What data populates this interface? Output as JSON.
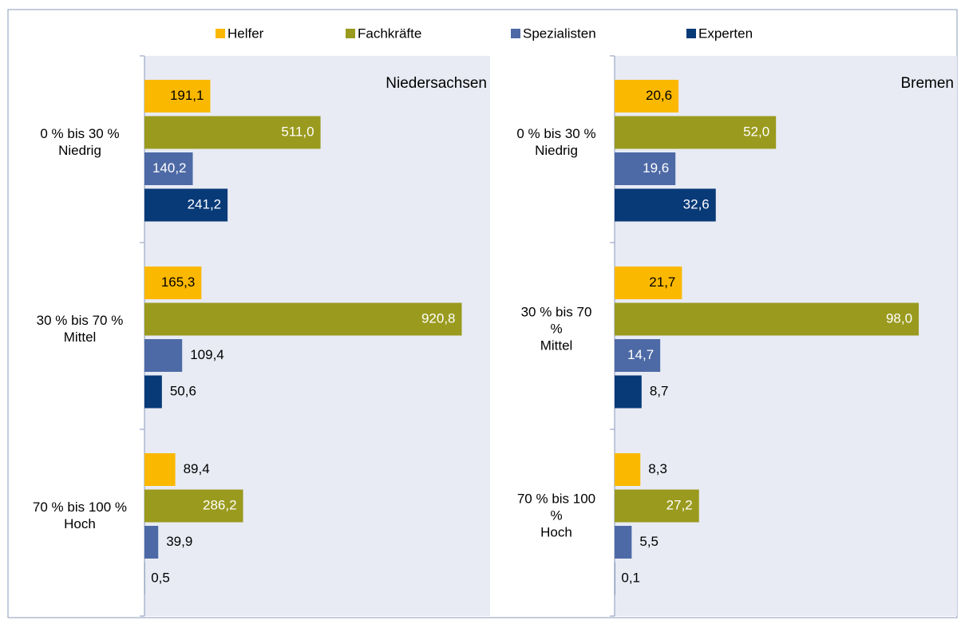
{
  "chart_data": [
    {
      "type": "bar",
      "orientation": "horizontal",
      "title": "Niedersachsen",
      "categories": [
        [
          "0 % bis 30 %",
          "Niedrig"
        ],
        [
          "30 % bis 70 %",
          "Mittel"
        ],
        [
          "70 % bis 100 %",
          "Hoch"
        ]
      ],
      "xlim": [
        0,
        1000
      ],
      "series": [
        {
          "name": "Helfer",
          "color": "#fbb800",
          "values": [
            191.1,
            165.3,
            89.4
          ],
          "value_labels": [
            "191,1",
            "165,3",
            "89,4"
          ]
        },
        {
          "name": "Fachkräfte",
          "color": "#9a9a1e",
          "values": [
            511.0,
            920.8,
            286.2
          ],
          "value_labels": [
            "511,0",
            "920,8",
            "286,2"
          ]
        },
        {
          "name": "Spezialisten",
          "color": "#4d6aa6",
          "values": [
            140.2,
            109.4,
            39.9
          ],
          "value_labels": [
            "140,2",
            "109,4",
            "39,9"
          ]
        },
        {
          "name": "Experten",
          "color": "#083a78",
          "values": [
            241.2,
            50.6,
            0.5
          ],
          "value_labels": [
            "241,2",
            "50,6",
            "0,5"
          ]
        }
      ]
    },
    {
      "type": "bar",
      "orientation": "horizontal",
      "title": "Bremen",
      "categories": [
        [
          "0 % bis 30 %",
          "Niedrig"
        ],
        [
          "30 % bis 70",
          "%",
          "Mittel"
        ],
        [
          "70 % bis 100",
          "%",
          "Hoch"
        ]
      ],
      "xlim": [
        0,
        110
      ],
      "series": [
        {
          "color": "#fbb800",
          "values": [
            20.6,
            21.7,
            8.3
          ],
          "value_labels": [
            "20,6",
            "21,7",
            "8,3"
          ]
        },
        {
          "color": "#9a9a1e",
          "values": [
            52.0,
            98.0,
            27.2
          ],
          "value_labels": [
            "52,0",
            "98,0",
            "27,2"
          ]
        },
        {
          "color": "#4d6aa6",
          "values": [
            19.6,
            14.7,
            5.5
          ],
          "value_labels": [
            "19,6",
            "14,7",
            "5,5"
          ]
        },
        {
          "color": "#083a78",
          "values": [
            32.6,
            8.7,
            0.1
          ],
          "value_labels": [
            "32,6",
            "8,7",
            "0,1"
          ]
        }
      ]
    }
  ]
}
